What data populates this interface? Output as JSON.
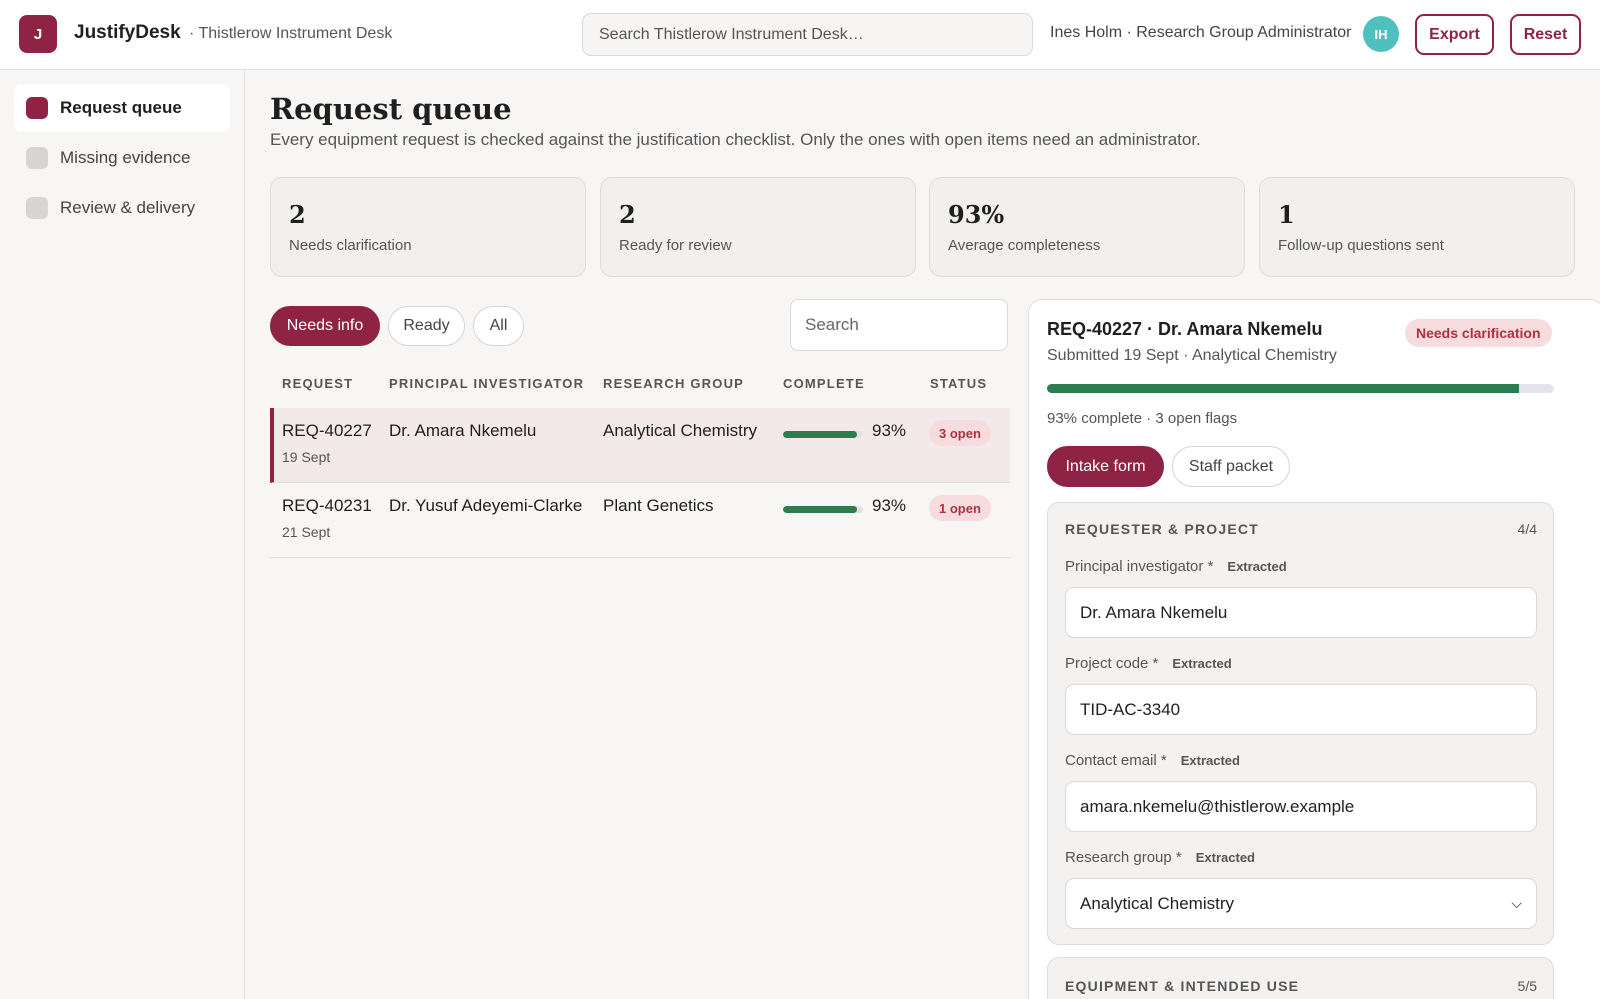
{
  "header": {
    "logo_letter": "J",
    "app_name": "JustifyDesk",
    "workspace": "· Thistlerow Instrument Desk",
    "search_placeholder": "Search Thistlerow Instrument Desk…",
    "user_text": "Ines Holm · Research Group Administrator",
    "avatar_initials": "IH",
    "export_label": "Export",
    "reset_label": "Reset"
  },
  "sidebar": {
    "items": [
      {
        "label": "Request queue",
        "active": true
      },
      {
        "label": "Missing evidence",
        "active": false
      },
      {
        "label": "Review & delivery",
        "active": false
      }
    ]
  },
  "page": {
    "title": "Request queue",
    "subtitle": "Every equipment request is checked against the justification checklist. Only the ones with open items need an administrator."
  },
  "stats": [
    {
      "value": "2",
      "label": "Needs clarification"
    },
    {
      "value": "2",
      "label": "Ready for review"
    },
    {
      "value": "93%",
      "label": "Average completeness"
    },
    {
      "value": "1",
      "label": "Follow-up questions sent"
    }
  ],
  "filters": {
    "pills": [
      "Needs info",
      "Ready",
      "All"
    ],
    "active": "Needs info",
    "search_placeholder": "Search"
  },
  "table": {
    "columns": [
      "REQUEST",
      "PRINCIPAL INVESTIGATOR",
      "RESEARCH GROUP",
      "COMPLETE",
      "STATUS"
    ],
    "rows": [
      {
        "id": "REQ-40227",
        "date": "19 Sept",
        "pi": "Dr. Amara Nkemelu",
        "group": "Analytical Chemistry",
        "complete": "93%",
        "complete_fraction": 0.93,
        "status": "3 open",
        "selected": true
      },
      {
        "id": "REQ-40231",
        "date": "21 Sept",
        "pi": "Dr. Yusuf Adeyemi-Clarke",
        "group": "Plant Genetics",
        "complete": "93%",
        "complete_fraction": 0.93,
        "status": "1 open",
        "selected": false
      }
    ]
  },
  "detail": {
    "title": "REQ-40227 · Dr. Amara Nkemelu",
    "badge": "Needs clarification",
    "submitted": "Submitted 19 Sept · Analytical Chemistry",
    "progress_fraction": 0.93,
    "progress_text": "93% complete · 3 open flags",
    "tabs": [
      "Intake form",
      "Staff packet"
    ],
    "active_tab": "Intake form",
    "sections": [
      {
        "title": "REQUESTER & PROJECT",
        "count": "4/4",
        "fields": [
          {
            "label": "Principal investigator *",
            "tag": "Extracted",
            "value": "Dr. Amara Nkemelu"
          },
          {
            "label": "Project code *",
            "tag": "Extracted",
            "value": "TID-AC-3340"
          },
          {
            "label": "Contact email *",
            "tag": "Extracted",
            "value": "amara.nkemelu@thistlerow.example"
          },
          {
            "label": "Research group *",
            "tag": "Extracted",
            "value": "Analytical Chemistry"
          }
        ]
      },
      {
        "title": "EQUIPMENT & INTENDED USE",
        "count": "5/5"
      }
    ]
  },
  "colors": {
    "accent": "#8e2346",
    "progress": "#2e7d4f",
    "avatar": "#4fc0bd",
    "badge_bg": "#f7dcdf",
    "badge_text": "#b0303f"
  }
}
